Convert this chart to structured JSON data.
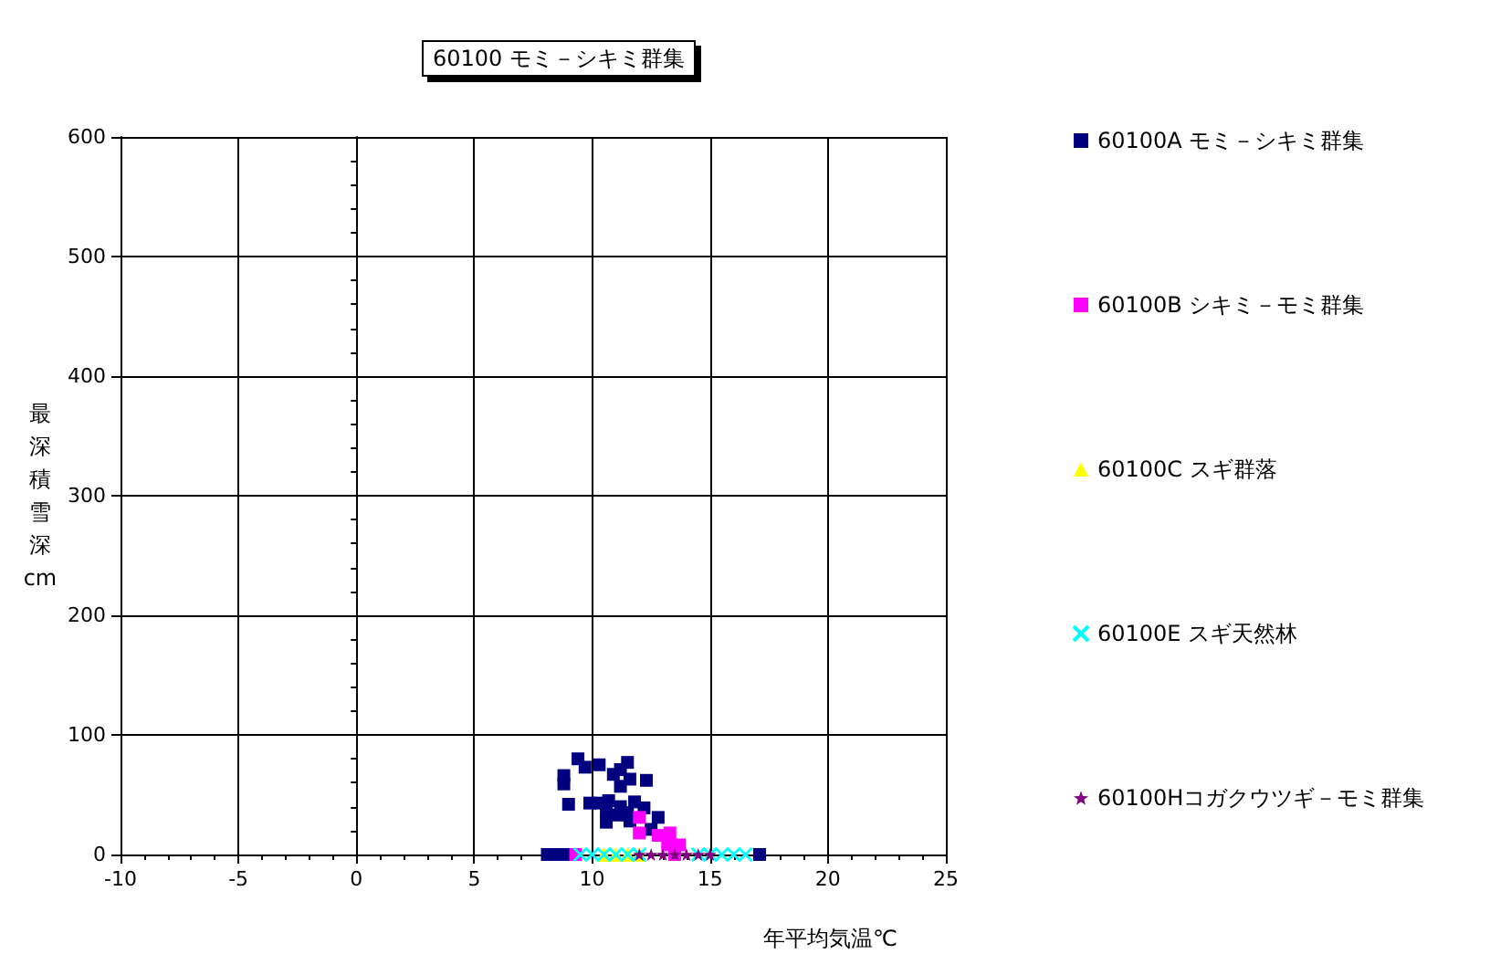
{
  "chart_data": {
    "type": "scatter",
    "title": "60100 モミ－シキミ群集",
    "xlabel": "年平均気温℃",
    "ylabel": "最深積雪深cm",
    "xlim": [
      -10,
      25
    ],
    "xticks": [
      -10,
      -5,
      0,
      5,
      10,
      15,
      20,
      25
    ],
    "ylim": [
      0,
      600
    ],
    "yticks": [
      0,
      100,
      200,
      300,
      400,
      500,
      600
    ],
    "grid": true,
    "legend": "right",
    "series": [
      {
        "name": "60100A モミ－シキミ群集",
        "color": "#000080",
        "marker": "square",
        "x": [
          9.4,
          9.7,
          8.8,
          8.8,
          10.3,
          10.9,
          11.5,
          11.2,
          11.6,
          11.2,
          12.3,
          9.0,
          9.9,
          10.3,
          10.7,
          11.2,
          11.8,
          12.2,
          10.6,
          11.1,
          11.6,
          12.8,
          12.5,
          10.6,
          11.5,
          8.1,
          8.5,
          8.9,
          17.1
        ],
        "values": [
          80,
          73,
          66,
          59,
          75,
          67,
          77,
          71,
          63,
          57,
          62,
          42,
          43,
          43,
          45,
          40,
          44,
          39,
          27,
          33,
          28,
          31,
          21,
          35,
          35,
          0,
          0,
          0,
          0
        ]
      },
      {
        "name": "60100B シキミ－モミ群集",
        "color": "#ff00ff",
        "marker": "square",
        "x": [
          12.0,
          12.0,
          12.8,
          13.3,
          13.7,
          13.2,
          9.3,
          13.5
        ],
        "values": [
          31,
          18,
          16,
          18,
          8,
          8,
          0,
          0
        ]
      },
      {
        "name": "60100C スギ群落",
        "color": "#ffff00",
        "marker": "triangle",
        "x": [
          10.5,
          11.0,
          11.5,
          12.0
        ],
        "values": [
          0,
          0,
          0,
          0
        ]
      },
      {
        "name": "60100E スギ天然林",
        "color": "#00ffff",
        "marker": "cross",
        "x": [
          9.5,
          10.0,
          10.5,
          11.0,
          11.5,
          12.0,
          14.5,
          15.0,
          15.5,
          16.0,
          16.5
        ],
        "values": [
          0,
          0,
          0,
          0,
          0,
          0,
          0,
          0,
          0,
          0,
          0
        ]
      },
      {
        "name": "60100Hコガクウツギ－モミ群集",
        "color": "#800080",
        "marker": "star",
        "x": [
          12.0,
          12.5,
          13.0,
          13.5,
          14.0,
          14.5,
          15.0
        ],
        "values": [
          0,
          0,
          0,
          0,
          0,
          0,
          0
        ]
      }
    ]
  }
}
